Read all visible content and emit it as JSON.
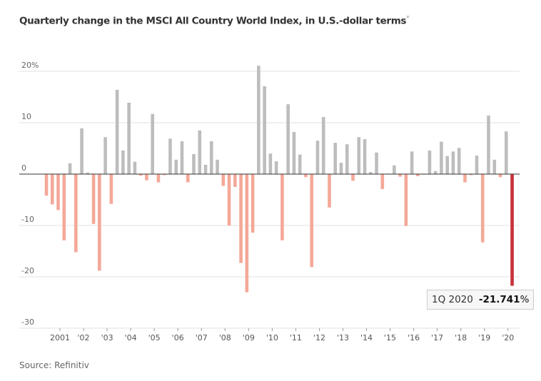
{
  "chart_data": {
    "type": "bar",
    "title": "Quarterly change in the MSCI All Country World Index, in U.S.-dollar terms",
    "title_note": "*",
    "xlabel": "",
    "ylabel": "",
    "ylim": [
      -30,
      25
    ],
    "yticks": [
      20,
      10,
      0,
      -10,
      -20,
      -30
    ],
    "ytick_labels": [
      "20%",
      "10",
      "0",
      "-10",
      "-20",
      "-30"
    ],
    "xtick_labels": [
      "2001",
      "'02",
      "'03",
      "'04",
      "'05",
      "'06",
      "'07",
      "'08",
      "'09",
      "'10",
      "'11",
      "'12",
      "'13",
      "'14",
      "'15",
      "'16",
      "'17",
      "'18",
      "'19",
      "'20"
    ],
    "start_quarter": "2000 Q2",
    "values": [
      -4.2,
      -5.9,
      -7.0,
      -12.9,
      2.1,
      -15.2,
      8.9,
      0.3,
      -9.7,
      -18.8,
      7.2,
      -5.8,
      16.4,
      4.6,
      13.9,
      2.4,
      -0.3,
      -1.2,
      11.7,
      -1.6,
      -0.2,
      6.9,
      2.8,
      6.4,
      -1.6,
      3.9,
      8.5,
      1.8,
      6.4,
      2.8,
      -2.3,
      -10.0,
      -2.5,
      -17.3,
      -23.0,
      -11.4,
      21.1,
      17.1,
      4.0,
      2.5,
      -12.9,
      13.6,
      8.2,
      3.8,
      -0.6,
      -18.1,
      6.5,
      11.1,
      -6.5,
      6.1,
      2.2,
      5.8,
      -1.3,
      7.2,
      6.8,
      0.4,
      4.2,
      -2.9,
      0.1,
      1.7,
      -0.5,
      -10.1,
      4.4,
      -0.4,
      -0.1,
      4.6,
      0.6,
      6.3,
      3.5,
      4.4,
      5.1,
      -1.6,
      -0.2,
      3.6,
      -13.3,
      11.4,
      2.8,
      -0.6,
      8.3,
      -21.741
    ],
    "colors": {
      "positive": "#bdbdbd",
      "negative": "#f4a898",
      "highlight": "#c8313b",
      "zero_line": "#333333",
      "grid": "#e2e2e2"
    },
    "highlight": {
      "label": "1Q 2020",
      "value_label": "-21.741",
      "unit": "%"
    },
    "source": "Source: Refinitiv"
  }
}
